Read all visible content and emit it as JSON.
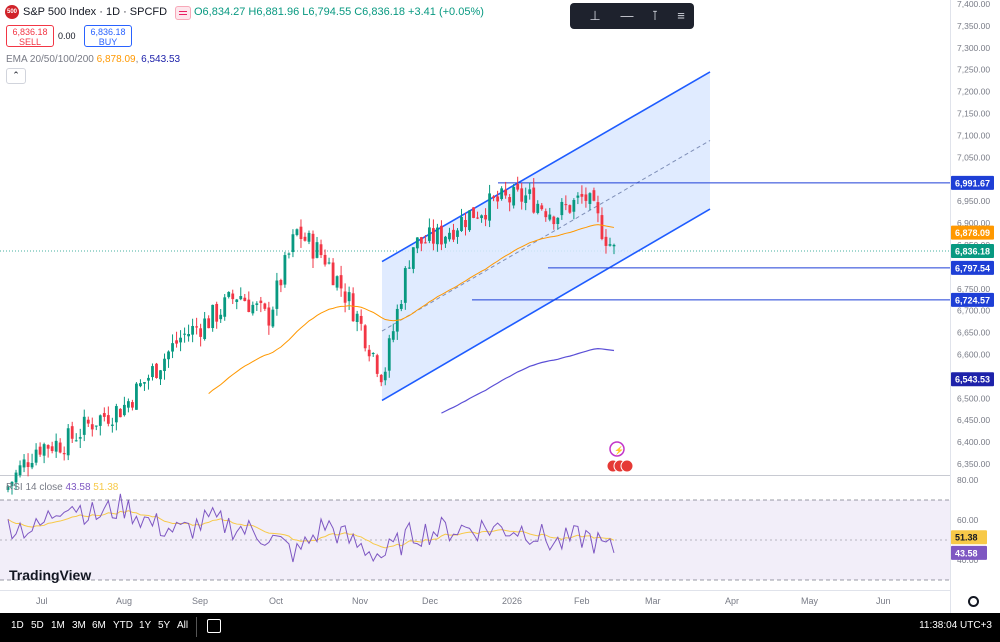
{
  "header": {
    "logo_text": "500",
    "title": "S&P 500 Index · 1D · SPCFD",
    "ohlc": "O6,834.27 H6,881.96 L6,794.55 C6,836.18 +3.41 (+0.05%)",
    "sell_price": "6,836.18",
    "sell_label": "SELL",
    "spread": "0.00",
    "buy_price": "6,836.18",
    "buy_label": "BUY",
    "ema_label": "EMA 20/50/100/200",
    "ema_v1": "6,878.09",
    "ema_v2": "6,543.53",
    "collapse": "⌃"
  },
  "toolbar": {
    "icons": [
      "price-label-icon",
      "horizontal-line-icon",
      "vertical-range-icon",
      "menu-lines-icon"
    ]
  },
  "colors": {
    "up": "#089981",
    "down": "#f23645",
    "channel": "#1e5cff",
    "channel_fill": "#dbe7ff",
    "ema50": "#ff9800",
    "ema200": "#5b4fd6",
    "rsi": "#7e57c2",
    "rsi_ma": "#f7c948"
  },
  "price_axis": {
    "ticks": [
      "7,400.00",
      "7,350.00",
      "7,300.00",
      "7,250.00",
      "7,200.00",
      "7,150.00",
      "7,100.00",
      "7,050.00",
      "7,000.00",
      "6,950.00",
      "6,900.00",
      "6,850.00",
      "6,800.00",
      "6,750.00",
      "6,700.00",
      "6,650.00",
      "6,600.00",
      "6,550.00",
      "6,500.00",
      "6,450.00",
      "6,400.00",
      "6,350.00"
    ]
  },
  "price_labels": [
    {
      "text": "6,991.67",
      "value": 6991.67,
      "bg": "#1e3fd6"
    },
    {
      "text": "6,878.09",
      "value": 6878.09,
      "bg": "#ff9800"
    },
    {
      "text": "6,836.18",
      "value": 6836.18,
      "bg": "#089981"
    },
    {
      "text": "6,797.54",
      "value": 6797.54,
      "bg": "#1e3fd6"
    },
    {
      "text": "6,724.57",
      "value": 6724.57,
      "bg": "#1e3fd6"
    },
    {
      "text": "6,543.53",
      "value": 6543.53,
      "bg": "#1e22aa"
    }
  ],
  "rsi": {
    "label": "RSI 14 close",
    "value": "43.58",
    "ma_value": "51.38",
    "axis_ticks": [
      "80.00",
      "60.00",
      "40.00"
    ],
    "labels": [
      {
        "text": "51.38",
        "value": 51.38,
        "bg": "#f7c948",
        "fg": "#131722"
      },
      {
        "text": "43.58",
        "value": 43.58,
        "bg": "#7e57c2",
        "fg": "#ffffff"
      }
    ]
  },
  "time_axis": [
    "Jul",
    "Aug",
    "Sep",
    "Oct",
    "Nov",
    "Dec",
    "2026",
    "Feb",
    "Mar",
    "Apr",
    "May",
    "Jun"
  ],
  "brand": "TradingView",
  "bottom": {
    "ranges": [
      "1D",
      "5D",
      "1M",
      "3M",
      "6M",
      "YTD",
      "1Y",
      "5Y",
      "All"
    ],
    "clock": "11:38:04 UTC+3"
  },
  "chart_data": {
    "type": "candlestick",
    "title": "S&P 500 Index · 1D · SPCFD",
    "ylim": [
      6325,
      7400
    ],
    "horizontal_levels": [
      6991.67,
      6797.54,
      6724.57
    ],
    "close_series": [
      {
        "period": "mid Jul",
        "close": 6300
      },
      {
        "period": "late Jul",
        "close": 6390
      },
      {
        "period": "Aug",
        "close": 6400
      },
      {
        "period": "mid Aug",
        "close": 6450
      },
      {
        "period": "late Aug",
        "close": 6480
      },
      {
        "period": "Sep",
        "close": 6560
      },
      {
        "period": "mid Sep",
        "close": 6640
      },
      {
        "period": "late Sep",
        "close": 6680
      },
      {
        "period": "early Oct",
        "close": 6740
      },
      {
        "period": "mid Oct",
        "close": 6680
      },
      {
        "period": "late Oct",
        "close": 6880
      },
      {
        "period": "early Nov",
        "close": 6820
      },
      {
        "period": "mid Nov",
        "close": 6700
      },
      {
        "period": "late Nov",
        "close": 6550
      },
      {
        "period": "early Dec",
        "close": 6850
      },
      {
        "period": "mid Dec",
        "close": 6870
      },
      {
        "period": "late Dec",
        "close": 6920
      },
      {
        "period": "early Jan",
        "close": 6950
      },
      {
        "period": "mid Jan",
        "close": 6960
      },
      {
        "period": "late Jan",
        "close": 6920
      },
      {
        "period": "early Feb",
        "close": 6960
      },
      {
        "period": "mid Feb",
        "close": 6836.18
      }
    ],
    "rsi_series": [
      58,
      55,
      70,
      62,
      67,
      58,
      54,
      60,
      56,
      52,
      43,
      58,
      48,
      42,
      53,
      55,
      56,
      56,
      55,
      48,
      52,
      43.58
    ],
    "rsi_ylim": [
      25,
      85
    ]
  }
}
